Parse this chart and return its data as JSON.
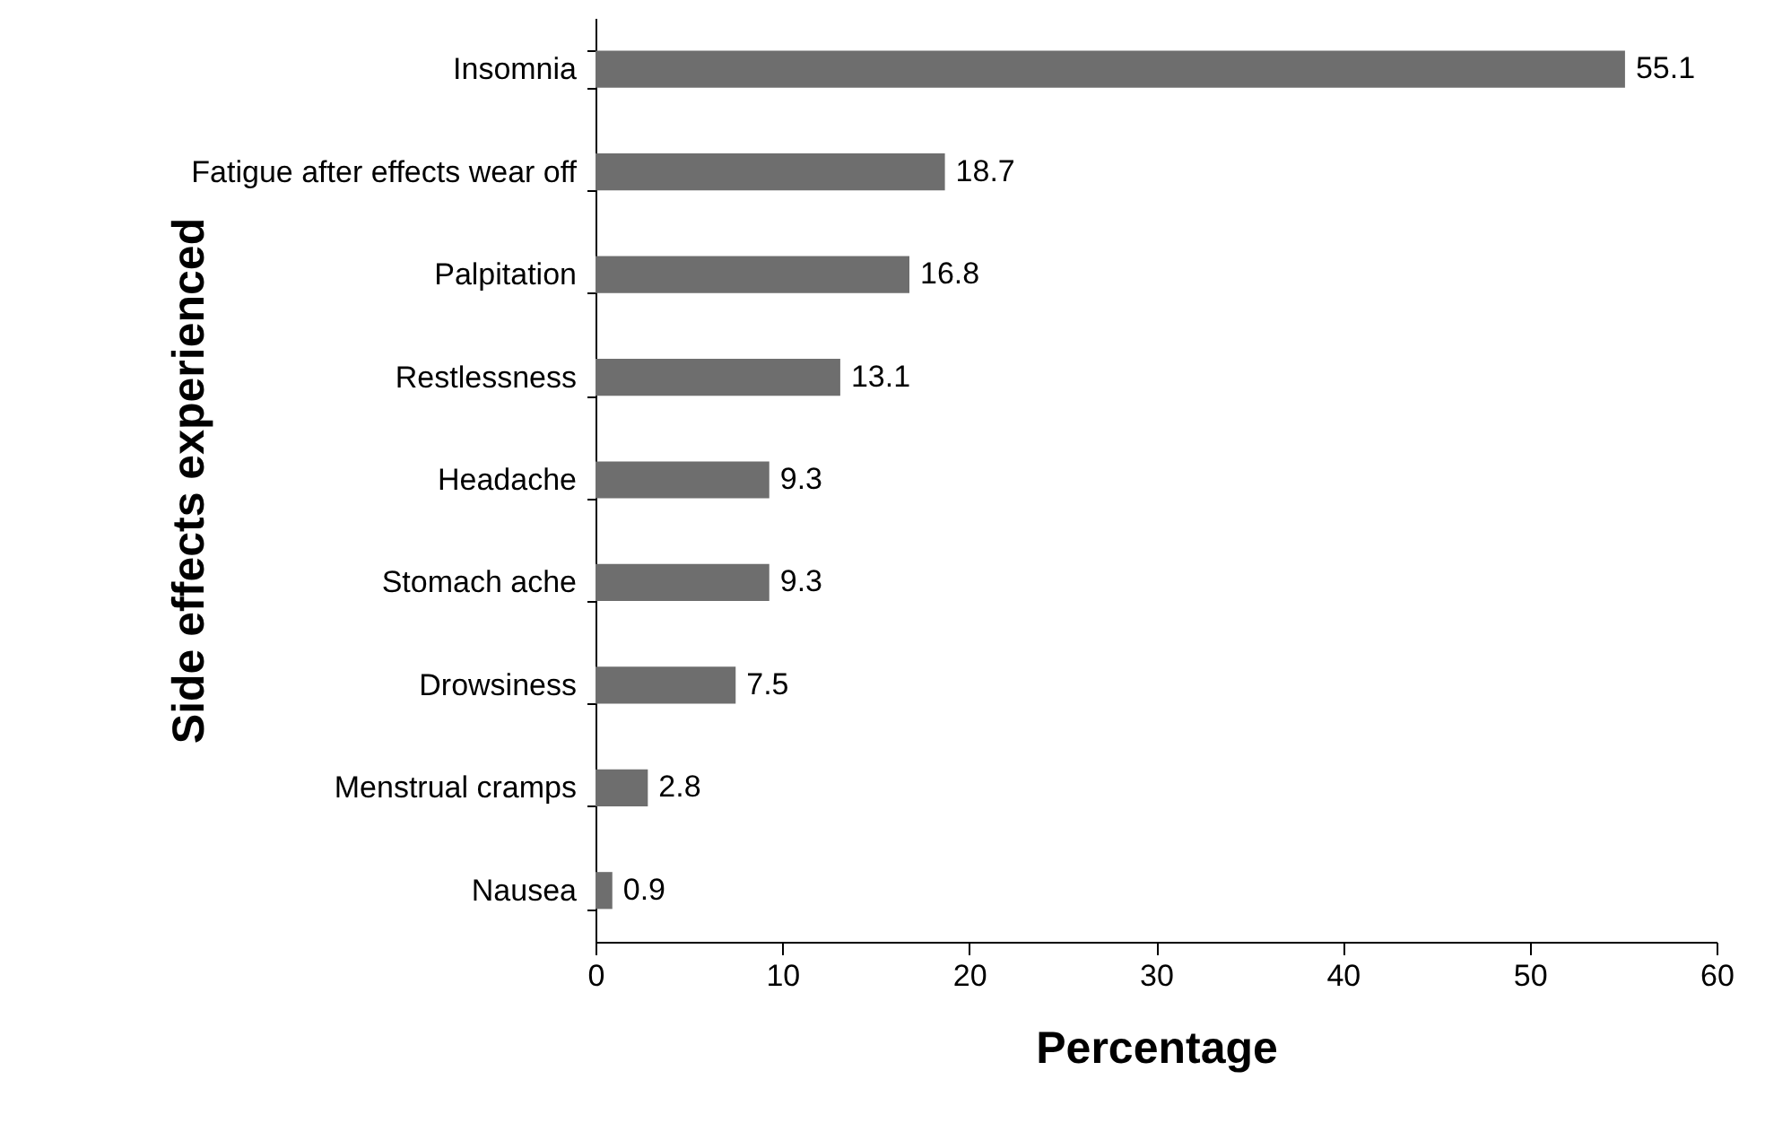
{
  "chart_data": {
    "type": "bar",
    "orientation": "horizontal",
    "xlabel": "Percentage",
    "ylabel": "Side effects experienced",
    "categories": [
      "Insomnia",
      "Fatigue after effects wear off",
      "Palpitation",
      "Restlessness",
      "Headache",
      "Stomach ache",
      "Drowsiness",
      "Menstrual cramps",
      "Nausea"
    ],
    "values": [
      55.1,
      18.7,
      16.8,
      13.1,
      9.3,
      9.3,
      7.5,
      2.8,
      0.9
    ],
    "color": "#6e6e6e",
    "xlim": [
      0,
      60
    ],
    "xticks": [
      0,
      10,
      20,
      30,
      40,
      50,
      60
    ],
    "grid": false,
    "data_labels": true
  }
}
